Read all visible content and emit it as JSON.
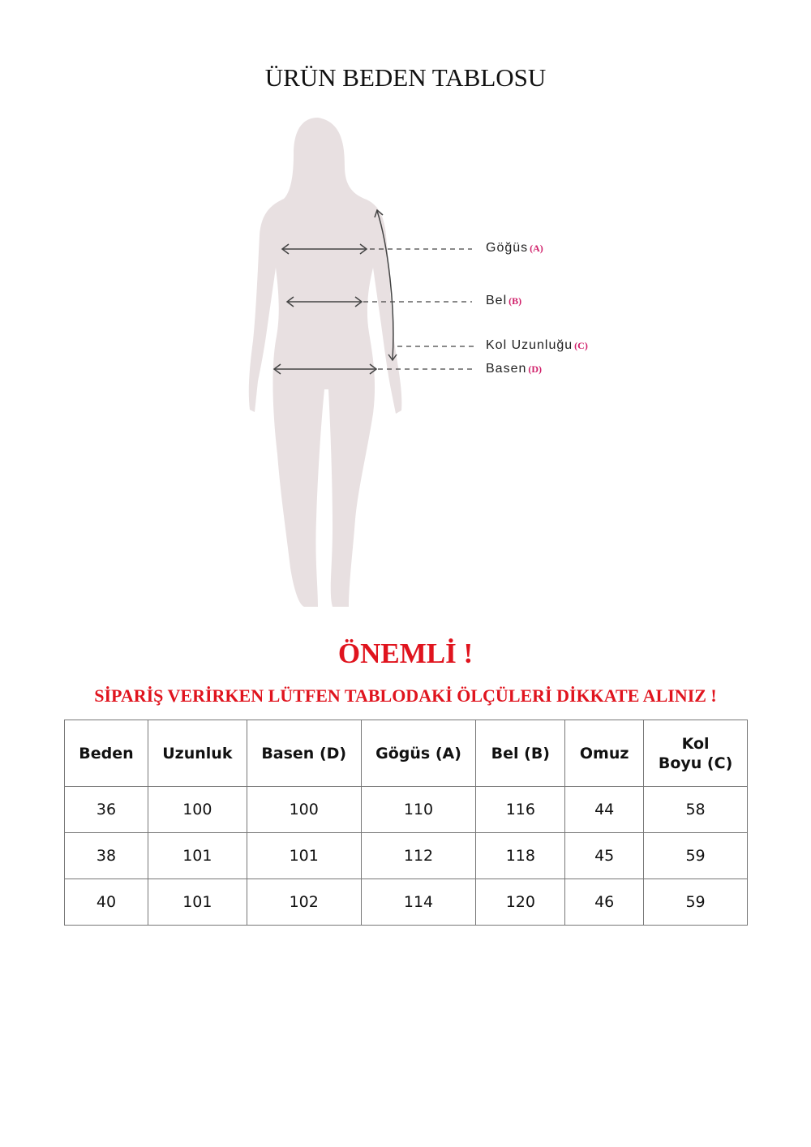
{
  "title": "ÜRÜN BEDEN TABLOSU",
  "figure": {
    "labels": [
      {
        "text": "Göğüs",
        "code": "(A)"
      },
      {
        "text": "Bel",
        "code": "(B)"
      },
      {
        "text": "Kol Uzunluğu",
        "code": "(C)"
      },
      {
        "text": "Basen",
        "code": "(D)"
      }
    ],
    "silhouette_color": "#e8e0e1",
    "code_color": "#d0206a"
  },
  "notice": {
    "heading": "ÖNEMLİ !",
    "message": "SİPARİŞ VERİRKEN LÜTFEN TABLODAKİ ÖLÇÜLERİ DİKKATE ALINIZ !",
    "color": "#e0141e"
  },
  "table": {
    "headers": [
      "Beden",
      "Uzunluk",
      "Basen (D)",
      "Gögüs (A)",
      "Bel (B)",
      "Omuz",
      "Kol\nBoyu (C)"
    ],
    "rows": [
      [
        "36",
        "100",
        "100",
        "110",
        "116",
        "44",
        "58"
      ],
      [
        "38",
        "101",
        "101",
        "112",
        "118",
        "45",
        "59"
      ],
      [
        "40",
        "101",
        "102",
        "114",
        "120",
        "46",
        "59"
      ]
    ]
  }
}
